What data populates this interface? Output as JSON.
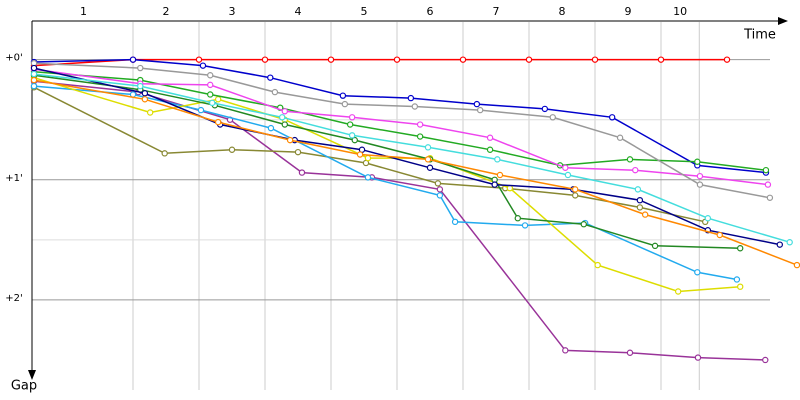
{
  "chart_data": {
    "type": "line",
    "x_label": "Time",
    "y_label": "Gap",
    "xlim": [
      -0.5,
      11.1
    ],
    "ylim": [
      -0.33,
      2.75
    ],
    "y_inverted": true,
    "grid": true,
    "xticks": [
      {
        "value": 1,
        "label": "1"
      },
      {
        "value": 2,
        "label": "2"
      },
      {
        "value": 3,
        "label": "3"
      },
      {
        "value": 4,
        "label": "4"
      },
      {
        "value": 5,
        "label": "5"
      },
      {
        "value": 6,
        "label": "6"
      },
      {
        "value": 7,
        "label": "7"
      },
      {
        "value": 8,
        "label": "8"
      },
      {
        "value": 9,
        "label": "9"
      },
      {
        "value": 9.58,
        "label": "10"
      }
    ],
    "yticks": [
      {
        "value": 0,
        "label": "+0'"
      },
      {
        "value": 1,
        "label": "+1'"
      },
      {
        "value": 2,
        "label": "+2'"
      }
    ],
    "minor_yticks": [
      0.5,
      1.5
    ],
    "series": [
      {
        "color": "#ff0000",
        "x": [
          -0.5,
          1,
          2,
          3,
          4,
          5,
          6,
          7,
          8,
          9,
          10
        ],
        "values": [
          0.05,
          0,
          0,
          0,
          0,
          0,
          0,
          0,
          0,
          0,
          0
        ]
      },
      {
        "color": "#0000cc",
        "x": [
          -0.5,
          1.0,
          2.06,
          3.08,
          4.18,
          5.21,
          6.21,
          7.24,
          8.26,
          9.55,
          10.59
        ],
        "values": [
          0.02,
          0,
          0.05,
          0.15,
          0.3,
          0.32,
          0.37,
          0.41,
          0.48,
          0.88,
          0.94
        ]
      },
      {
        "color": "#993399",
        "x": [
          -0.5,
          1.08,
          2.47,
          3.56,
          4.62,
          5.65,
          7.55,
          8.53,
          9.56,
          10.58
        ],
        "values": [
          0.18,
          0.27,
          0.5,
          0.94,
          0.98,
          1.08,
          2.42,
          2.44,
          2.48,
          2.5
        ]
      },
      {
        "color": "#888833",
        "x": [
          -0.5,
          1.48,
          2.5,
          3.5,
          4.53,
          5.62,
          6.64,
          7.7,
          8.68,
          9.67
        ],
        "values": [
          0.23,
          0.78,
          0.75,
          0.77,
          0.86,
          1.03,
          1.07,
          1.13,
          1.23,
          1.35
        ]
      },
      {
        "color": "#22aaee",
        "x": [
          -0.5,
          1.0,
          2.03,
          3.09,
          4.56,
          5.65,
          5.88,
          6.94,
          7.85,
          9.55,
          10.15
        ],
        "values": [
          0.22,
          0.29,
          0.42,
          0.57,
          0.98,
          1.13,
          1.35,
          1.38,
          1.36,
          1.77,
          1.83
        ]
      },
      {
        "color": "#dddd00",
        "x": [
          -0.5,
          1.26,
          2.29,
          3.3,
          4.56,
          5.5,
          6.71,
          8.04,
          9.26,
          10.2
        ],
        "values": [
          0.15,
          0.44,
          0.33,
          0.5,
          0.82,
          0.82,
          1.07,
          1.71,
          1.93,
          1.89
        ]
      },
      {
        "color": "#22aa22",
        "x": [
          -0.5,
          1.11,
          2.17,
          3.23,
          4.29,
          5.35,
          6.41,
          7.47,
          8.53,
          9.55,
          10.59
        ],
        "values": [
          0.1,
          0.17,
          0.29,
          0.4,
          0.54,
          0.64,
          0.75,
          0.88,
          0.83,
          0.85,
          0.92
        ]
      },
      {
        "color": "#228822",
        "x": [
          -0.5,
          1.11,
          2.24,
          3.3,
          4.36,
          5.5,
          6.48,
          6.83,
          7.83,
          8.91,
          10.2
        ],
        "values": [
          0.13,
          0.25,
          0.38,
          0.54,
          0.67,
          0.83,
          1.0,
          1.32,
          1.37,
          1.55,
          1.57
        ]
      },
      {
        "color": "#ee44ee",
        "x": [
          -0.5,
          1.11,
          2.17,
          3.3,
          4.32,
          5.35,
          6.41,
          7.55,
          8.61,
          9.59,
          10.62
        ],
        "values": [
          0.08,
          0.2,
          0.21,
          0.43,
          0.48,
          0.54,
          0.65,
          0.9,
          0.92,
          0.97,
          1.04
        ]
      },
      {
        "color": "#999999",
        "x": [
          -0.5,
          1.11,
          2.17,
          3.15,
          4.21,
          5.27,
          6.26,
          7.36,
          8.38,
          9.59,
          10.65
        ],
        "values": [
          0.03,
          0.07,
          0.13,
          0.27,
          0.37,
          0.39,
          0.42,
          0.48,
          0.65,
          1.04,
          1.15
        ]
      },
      {
        "color": "#000088",
        "x": [
          -0.5,
          1.18,
          2.32,
          3.45,
          4.47,
          5.5,
          6.48,
          7.67,
          8.68,
          9.71,
          10.8
        ],
        "values": [
          0.07,
          0.28,
          0.54,
          0.67,
          0.75,
          0.9,
          1.04,
          1.08,
          1.17,
          1.42,
          1.54
        ]
      },
      {
        "color": "#44dddd",
        "x": [
          -0.5,
          1.11,
          2.2,
          3.26,
          4.32,
          5.47,
          6.52,
          7.59,
          8.65,
          9.71,
          10.95
        ],
        "values": [
          0.12,
          0.22,
          0.36,
          0.48,
          0.63,
          0.73,
          0.83,
          0.96,
          1.08,
          1.32,
          1.52
        ]
      },
      {
        "color": "#ff8800",
        "x": [
          -0.5,
          1.18,
          2.29,
          3.38,
          4.44,
          5.47,
          6.56,
          7.7,
          8.76,
          9.89,
          11.06
        ],
        "values": [
          0.17,
          0.33,
          0.52,
          0.67,
          0.79,
          0.83,
          0.96,
          1.08,
          1.29,
          1.46,
          1.71
        ]
      }
    ]
  }
}
